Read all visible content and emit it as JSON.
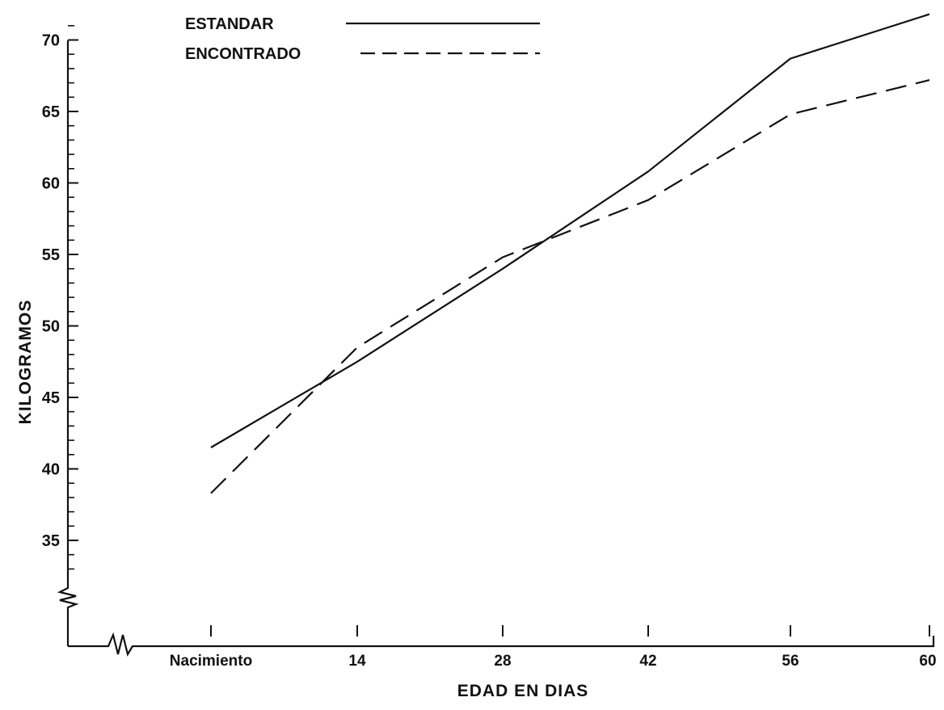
{
  "chart_data": {
    "type": "line",
    "title": "",
    "xlabel": "EDAD EN DIAS",
    "ylabel": "KILOGRAMOS",
    "categories": [
      "Nacimiento",
      "14",
      "28",
      "42",
      "56",
      "60"
    ],
    "yticks": [
      35,
      40,
      45,
      50,
      55,
      60,
      65,
      70
    ],
    "ylim": [
      30,
      72
    ],
    "y_axis_break": true,
    "x_axis_break": true,
    "grid": false,
    "legend_position": "top",
    "series": [
      {
        "name": "ESTANDAR",
        "style": "solid",
        "color": "#111111",
        "values": [
          41.5,
          47.5,
          54.0,
          60.8,
          68.7,
          71.8
        ]
      },
      {
        "name": "ENCONTRADO",
        "style": "dashed",
        "color": "#111111",
        "values": [
          38.3,
          48.5,
          54.8,
          58.8,
          64.8,
          67.2
        ]
      }
    ]
  }
}
